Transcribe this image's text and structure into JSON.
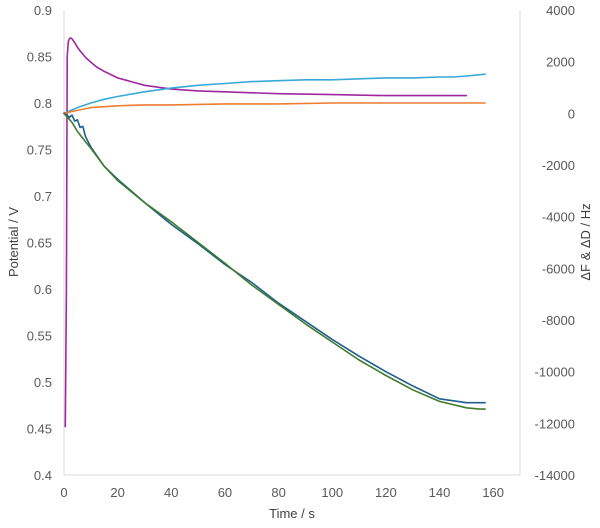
{
  "chart_data": {
    "type": "line",
    "title": "",
    "xlabel": "Time / s",
    "ylabel_left": "Potential / V",
    "ylabel_right": "ΔF & ΔD / Hz",
    "xlim": [
      0,
      170
    ],
    "xticks": [
      0,
      20,
      40,
      60,
      80,
      100,
      120,
      140,
      160
    ],
    "ylim_left": [
      0.4,
      0.9
    ],
    "yticks_left": [
      "0.4",
      "0.45",
      "0.5",
      "0.55",
      "0.6",
      "0.65",
      "0.7",
      "0.75",
      "0.8",
      "0.85",
      "0.9"
    ],
    "ylim_right": [
      -14000,
      4000
    ],
    "yticks_right": [
      "-14000",
      "-12000",
      "-10000",
      "-8000",
      "-6000",
      "-4000",
      "-2000",
      "0",
      "2000",
      "4000"
    ],
    "grid": false,
    "legend": "none",
    "series": [
      {
        "axis": "left",
        "color": "#a0279f",
        "x": [
          0.5,
          0.9,
          1.2,
          1.6,
          2.0,
          2.5,
          3,
          4,
          5,
          6,
          8,
          10,
          12,
          15,
          20,
          25,
          30,
          40,
          50,
          60,
          70,
          80,
          100,
          120,
          140,
          150
        ],
        "y": [
          0.452,
          0.6,
          0.85,
          0.866,
          0.869,
          0.87,
          0.869,
          0.865,
          0.86,
          0.856,
          0.849,
          0.844,
          0.839,
          0.834,
          0.827,
          0.823,
          0.819,
          0.815,
          0.813,
          0.812,
          0.811,
          0.81,
          0.809,
          0.808,
          0.808,
          0.808
        ]
      },
      {
        "axis": "left",
        "color": "#3aa8d8",
        "x": [
          0,
          5,
          10,
          15,
          20,
          30,
          40,
          50,
          60,
          70,
          80,
          90,
          100,
          110,
          120,
          130,
          140,
          145,
          150,
          157
        ],
        "y": [
          0.789,
          0.795,
          0.8,
          0.804,
          0.807,
          0.812,
          0.816,
          0.819,
          0.821,
          0.823,
          0.824,
          0.825,
          0.825,
          0.826,
          0.827,
          0.827,
          0.828,
          0.828,
          0.829,
          0.831
        ]
      },
      {
        "axis": "left",
        "color": "#ed7d31",
        "x": [
          0,
          5,
          10,
          15,
          20,
          30,
          40,
          60,
          80,
          100,
          120,
          140,
          157
        ],
        "y": [
          0.789,
          0.792,
          0.795,
          0.796,
          0.797,
          0.798,
          0.798,
          0.799,
          0.799,
          0.8,
          0.8,
          0.8,
          0.8
        ]
      },
      {
        "axis": "right",
        "color": "#1f5e8c",
        "x": [
          0,
          2,
          3,
          4,
          5,
          6,
          7,
          8,
          10,
          15,
          20,
          30,
          40,
          50,
          60,
          70,
          80,
          90,
          100,
          110,
          120,
          130,
          140,
          150,
          152,
          154,
          157
        ],
        "y": [
          0,
          -150,
          -70,
          -300,
          -250,
          -550,
          -500,
          -900,
          -1300,
          -2050,
          -2550,
          -3450,
          -4300,
          -5050,
          -5850,
          -6550,
          -7350,
          -8050,
          -8750,
          -9400,
          -10000,
          -10550,
          -11050,
          -11200,
          -11200,
          -11200,
          -11200
        ]
      },
      {
        "axis": "right",
        "color": "#3f7b2d",
        "x": [
          0,
          3,
          5,
          8,
          10,
          15,
          20,
          30,
          40,
          50,
          60,
          70,
          80,
          90,
          100,
          110,
          120,
          130,
          140,
          150,
          155,
          157
        ],
        "y": [
          0,
          -350,
          -700,
          -1100,
          -1350,
          -2050,
          -2600,
          -3450,
          -4200,
          -5000,
          -5800,
          -6650,
          -7400,
          -8150,
          -8850,
          -9550,
          -10150,
          -10700,
          -11150,
          -11400,
          -11450,
          -11450
        ]
      }
    ]
  }
}
